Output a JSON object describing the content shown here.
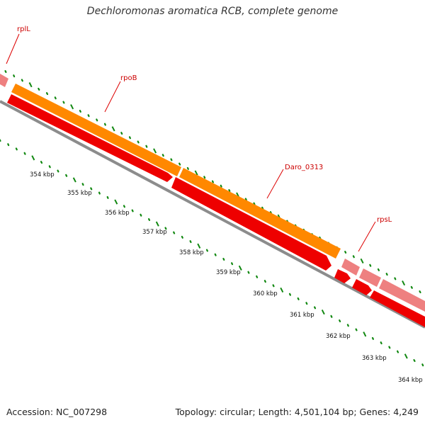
{
  "title": "Dechloromonas aromatica RCB, complete genome",
  "accession": "Accession: NC_007298",
  "summary": "Topology: circular; Length: 4,501,104 bp; Genes: 4,249",
  "colors": {
    "backbone": "#8c8c8c",
    "gene_red": "#ee0000",
    "gene_orange": "#ff8800",
    "gene_pink": "#ee8080",
    "ticks": "#118811",
    "label": "#cc0000"
  },
  "tick_labels": [
    "354 kbp",
    "355 kbp",
    "356 kbp",
    "357 kbp",
    "358 kbp",
    "359 kbp",
    "360 kbp",
    "361 kbp",
    "362 kbp",
    "363 kbp",
    "364 kbp"
  ],
  "gene_labels": [
    "rplL",
    "rpoB",
    "Daro_0313",
    "rpsL"
  ]
}
